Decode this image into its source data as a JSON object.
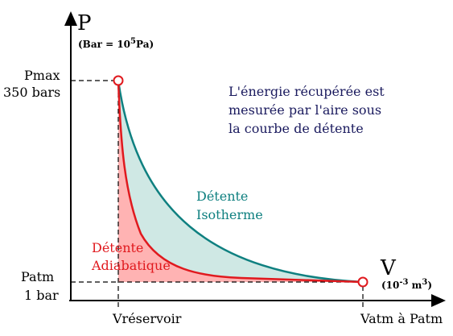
{
  "axes": {
    "y_symbol": "P",
    "y_unit_prefix": "(Bar = 10",
    "y_unit_exp": "5",
    "y_unit_suffix": "Pa)",
    "x_symbol": "V",
    "x_unit_prefix": "(10",
    "x_unit_exp1": "-3",
    "x_unit_mid": " m",
    "x_unit_exp2": "3",
    "x_unit_suffix": ")"
  },
  "y_ticks": {
    "pmax_line1": "Pmax",
    "pmax_line2": "350 bars",
    "patm_line1": "Patm",
    "patm_line2": "1 bar"
  },
  "x_ticks": {
    "reservoir": "Vréservoir",
    "atm": "Vatm à Patm"
  },
  "note": {
    "line1": "L'énergie récupérée est",
    "line2": "mesurée par l'aire sous",
    "line3": "la courbe de détente"
  },
  "isotherm": {
    "line1": "Détente",
    "line2": "Isotherme",
    "color": "#0f8080"
  },
  "adiabatic": {
    "line1": "Détente",
    "line2": "Adiabatique",
    "color": "#e0191e"
  },
  "colors": {
    "axis": "#000000",
    "text_note": "#1a1a5e",
    "fill_adiabatic": "#ffb3b3",
    "fill_isotherm": "#cfe8e4",
    "point_stroke": "#e0191e"
  }
}
